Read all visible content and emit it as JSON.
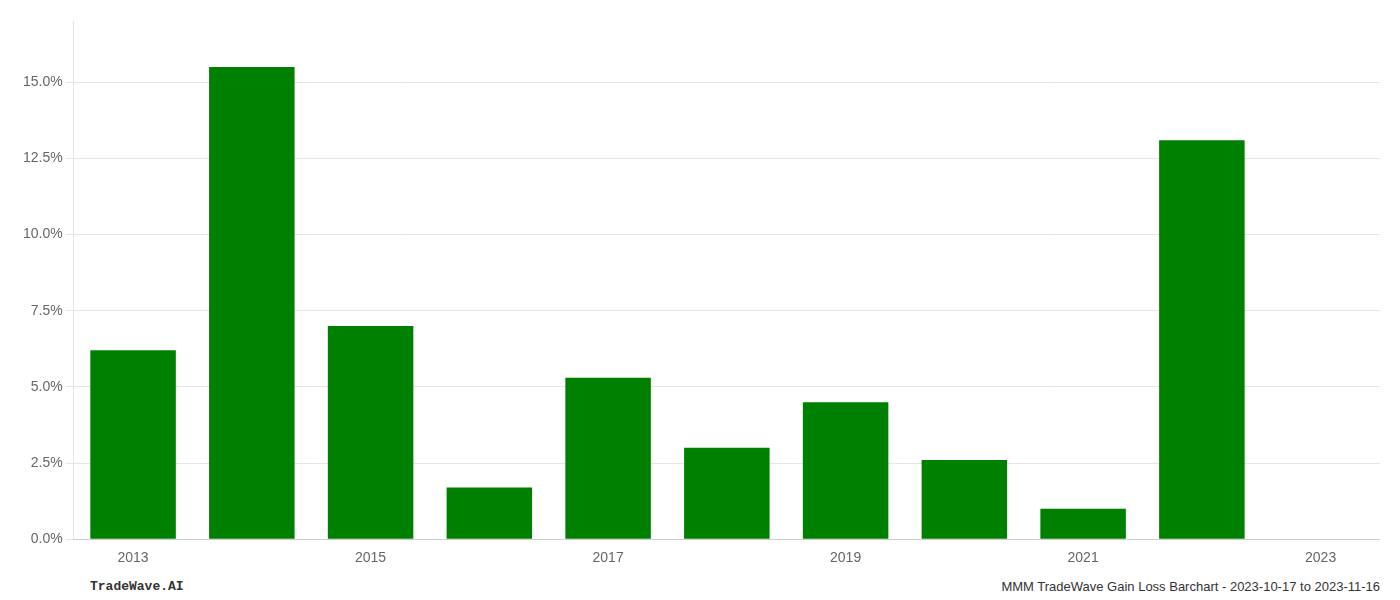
{
  "chart_data": {
    "type": "bar",
    "x": [
      2013,
      2014,
      2015,
      2016,
      2017,
      2018,
      2019,
      2020,
      2021,
      2022,
      2023
    ],
    "values": [
      0.062,
      0.155,
      0.07,
      0.017,
      0.053,
      0.03,
      0.045,
      0.026,
      0.01,
      0.131,
      0.0
    ],
    "color": "#008000",
    "xlim": [
      2012.5,
      2023.5
    ],
    "xticks": [
      2013,
      2015,
      2017,
      2019,
      2021,
      2023
    ],
    "ylim": [
      0,
      0.17
    ],
    "yticks": [
      {
        "value": 0.0,
        "label": "0.0%"
      },
      {
        "value": 0.025,
        "label": "2.5%"
      },
      {
        "value": 0.05,
        "label": "5.0%"
      },
      {
        "value": 0.075,
        "label": "7.5%"
      },
      {
        "value": 0.1,
        "label": "10.0%"
      },
      {
        "value": 0.125,
        "label": "12.5%"
      },
      {
        "value": 0.15,
        "label": "15.0%"
      }
    ],
    "grid": "y",
    "annotations": [
      "TradeWave.AI",
      "MMM TradeWave Gain Loss Barchart - 2023-10-17 to 2023-11-16"
    ]
  }
}
